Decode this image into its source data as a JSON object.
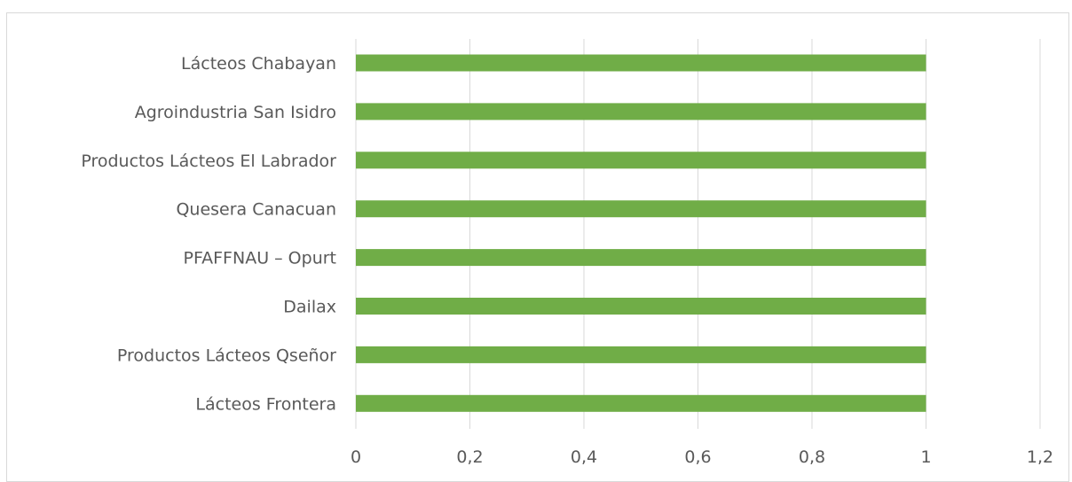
{
  "chart_data": {
    "type": "bar",
    "orientation": "horizontal",
    "categories": [
      "Lácteos Chabayan",
      "Agroindustria San Isidro",
      "Productos Lácteos El Labrador",
      "Quesera Canacuan",
      "PFAFFNAU – Opurt",
      "Dailax",
      "Productos Lácteos Qseñor",
      "Lácteos Frontera"
    ],
    "values": [
      1,
      1,
      1,
      1,
      1,
      1,
      1,
      1
    ],
    "xlim": [
      0,
      1.2
    ],
    "xticks": [
      0,
      0.2,
      0.4,
      0.6,
      0.8,
      1,
      1.2
    ],
    "xtick_labels": [
      "0",
      "0,2",
      "0,4",
      "0,6",
      "0,8",
      "1",
      "1,2"
    ],
    "title": "",
    "xlabel": "",
    "ylabel": "",
    "grid": "vertical",
    "legend": "none",
    "bar_color": "#70ad47"
  }
}
